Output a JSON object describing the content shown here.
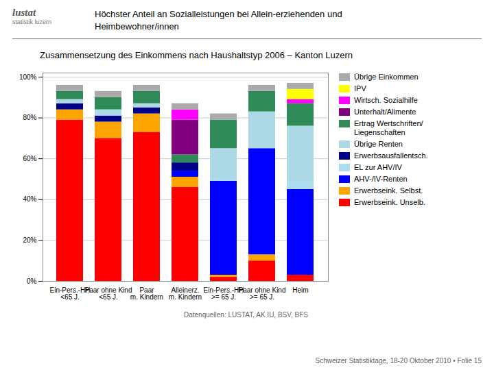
{
  "chart_data": {
    "type": "bar",
    "stacked": true,
    "title": "Zusammensetzung des Einkommens nach Haushaltstyp 2006 – Kanton Luzern",
    "annotations": [
      "Höchster Anteil an Sozialleistungen bei Allein-erziehenden und",
      "Heimbewohner/innen",
      "Datenquellen: LUSTAT, AK IU, BSV, BFS",
      "Schweizer Statistiktage, 18-20 Oktober 2010  •  Folie 15",
      "lustat",
      "statistik luzern"
    ],
    "categories": [
      "Ein-Pers.-HH\n<65 J.",
      "Paar ohne Kind\n<65 J.",
      "Paar\nm. Kindern",
      "Alleinerz.\nm. Kindern",
      "Ein-Pers.-HH\n>= 65 J.",
      "Paar ohne Kind\n>= 65 J.",
      "Heim"
    ],
    "series": [
      {
        "name": "Erwerbseink. Unselb.",
        "color": "#ff0000",
        "values": [
          79,
          70,
          73,
          46,
          2,
          10,
          3
        ]
      },
      {
        "name": "Erwerbseink. Selbst.",
        "color": "#ffa500",
        "values": [
          5,
          8,
          9,
          5,
          1,
          3,
          0
        ]
      },
      {
        "name": "AHV-/IV-Renten",
        "color": "#0000ff",
        "values": [
          0,
          0,
          0,
          3,
          46,
          52,
          42
        ]
      },
      {
        "name": "EL zur AHV/IV",
        "color": "#aaddee",
        "values": [
          0,
          0,
          0,
          0,
          1,
          0,
          4
        ]
      },
      {
        "name": "Erwerbsausfallentsch.",
        "color": "#00008b",
        "values": [
          3,
          3,
          3,
          4,
          0,
          0,
          0
        ]
      },
      {
        "name": "Übrige Renten",
        "color": "#add8e6",
        "values": [
          2,
          3,
          2,
          0,
          15,
          18,
          27
        ]
      },
      {
        "name": "Ertrag Wertschriften/\nLiegenschaften",
        "color": "#2e8b57",
        "values": [
          4,
          6,
          6,
          4,
          14,
          10,
          11
        ]
      },
      {
        "name": "Unterhalt/Alimente",
        "color": "#800080",
        "values": [
          0,
          0,
          0,
          17,
          0,
          0,
          0
        ]
      },
      {
        "name": "Wirtsch. Sozialhilfe",
        "color": "#ff00ff",
        "values": [
          0,
          0,
          0,
          5,
          0,
          0,
          2
        ]
      },
      {
        "name": "IPV",
        "color": "#ffff00",
        "values": [
          0,
          0,
          0,
          0,
          0,
          0,
          5
        ]
      },
      {
        "name": "Übrige Einkommen",
        "color": "#aaaaaa",
        "values": [
          3,
          3,
          3,
          3,
          3,
          3,
          3
        ]
      }
    ],
    "ylim": [
      0,
      102
    ],
    "yticks": [
      {
        "value": 0,
        "label": "0%"
      },
      {
        "value": 20,
        "label": "20%"
      },
      {
        "value": 40,
        "label": "40%"
      },
      {
        "value": 60,
        "label": "60%"
      },
      {
        "value": 80,
        "label": "80%"
      },
      {
        "value": 100,
        "label": "100%"
      }
    ],
    "grid": true,
    "legend": "right"
  }
}
